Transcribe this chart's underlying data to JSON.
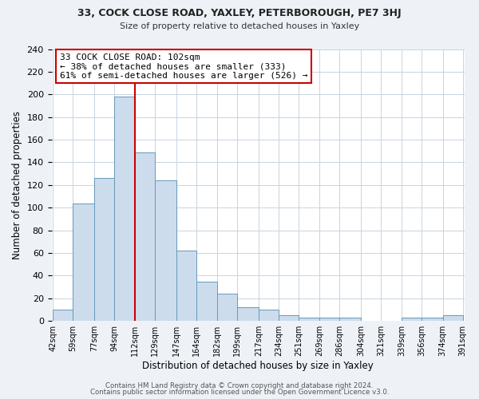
{
  "title": "33, COCK CLOSE ROAD, YAXLEY, PETERBOROUGH, PE7 3HJ",
  "subtitle": "Size of property relative to detached houses in Yaxley",
  "xlabel": "Distribution of detached houses by size in Yaxley",
  "ylabel": "Number of detached properties",
  "bin_labels": [
    "42sqm",
    "59sqm",
    "77sqm",
    "94sqm",
    "112sqm",
    "129sqm",
    "147sqm",
    "164sqm",
    "182sqm",
    "199sqm",
    "217sqm",
    "234sqm",
    "251sqm",
    "269sqm",
    "286sqm",
    "304sqm",
    "321sqm",
    "339sqm",
    "356sqm",
    "374sqm",
    "391sqm"
  ],
  "bar_heights": [
    10,
    104,
    126,
    198,
    149,
    124,
    62,
    35,
    24,
    12,
    10,
    5,
    3,
    3,
    3,
    0,
    0,
    3,
    3,
    5
  ],
  "bar_color": "#ccdcec",
  "bar_edge_color": "#6699bb",
  "marker_x_label": "94sqm",
  "marker_line_color": "#cc0000",
  "annotation_line1": "33 COCK CLOSE ROAD: 102sqm",
  "annotation_line2": "← 38% of detached houses are smaller (333)",
  "annotation_line3": "61% of semi-detached houses are larger (526) →",
  "annotation_box_color": "#ffffff",
  "annotation_box_edge_color": "#cc0000",
  "ylim": [
    0,
    240
  ],
  "yticks": [
    0,
    20,
    40,
    60,
    80,
    100,
    120,
    140,
    160,
    180,
    200,
    220,
    240
  ],
  "footer_line1": "Contains HM Land Registry data © Crown copyright and database right 2024.",
  "footer_line2": "Contains public sector information licensed under the Open Government Licence v3.0.",
  "background_color": "#eef2f7",
  "plot_background_color": "#ffffff",
  "grid_color": "#c8d4e0"
}
